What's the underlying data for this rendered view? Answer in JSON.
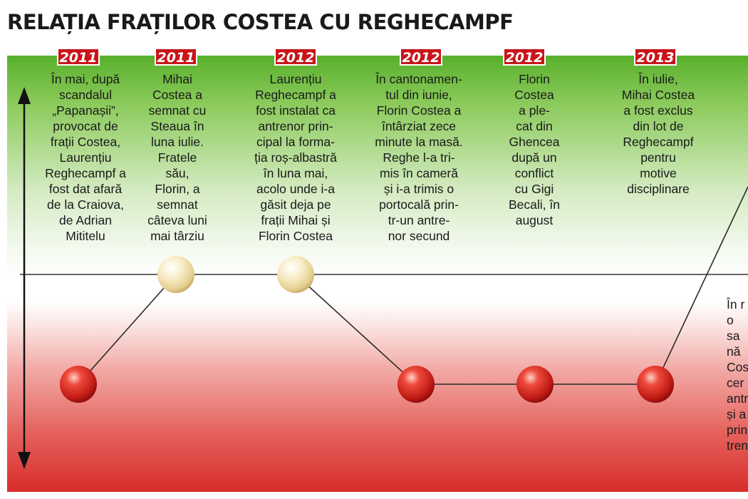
{
  "title": "RELAȚIA FRAȚILOR COSTEA CU REGHECAMPF",
  "events": [
    {
      "year": "2011",
      "text": "În mai, după\nscandalul\n„Papanașii”,\nprovocat de\nfrații Costea,\nLaurențiu\nReghecampf a\nfost dat afară\nde la Craiova,\nde Adrian\nMititelu",
      "level": "low"
    },
    {
      "year": "2011",
      "text": "Mihai\nCostea a\nsemnat cu\nSteaua în\nluna iulie.\nFratele\nsău,\nFlorin, a\nsemnat\ncâteva luni\nmai târziu",
      "level": "mid"
    },
    {
      "year": "2012",
      "text": "Laurențiu\nReghecampf a\nfost instalat ca\nantrenor prin-\ncipal la forma-\nția roș-albastră\nîn luna mai,\nacolo unde i-a\ngăsit deja pe\nfrații Mihai și\nFlorin Costea",
      "level": "mid"
    },
    {
      "year": "2012",
      "text": "În cantonamen-\ntul din iunie,\nFlorin Costea a\nîntârziat zece\nminute la masă.\nReghe l-a tri-\nmis în cameră\nși i-a trimis o\nportocală prin-\ntr-un antre-\nnor secund",
      "level": "low"
    },
    {
      "year": "2012",
      "text": "Florin\nCostea\na ple-\ncat din\nGhencea\ndupă un\nconflict\ncu Gigi\nBecali, în\naugust",
      "level": "low"
    },
    {
      "year": "2013",
      "text": "În iulie,\nMihai Costea\na fost exclus\ndin lot de\nReghecampf\npentru\nmotive\ndisciplinare",
      "level": "low"
    }
  ],
  "partial_event_text": "În r\no sa\nnă\nCos\ncer\nantr\nși a\nprin\ntren",
  "colors": {
    "badge": "#c8151b",
    "top_zone": "#58b02c",
    "bottom_zone": "#d72d2b",
    "dot_low": "#d42a22",
    "dot_mid": "#f2e4b6"
  }
}
